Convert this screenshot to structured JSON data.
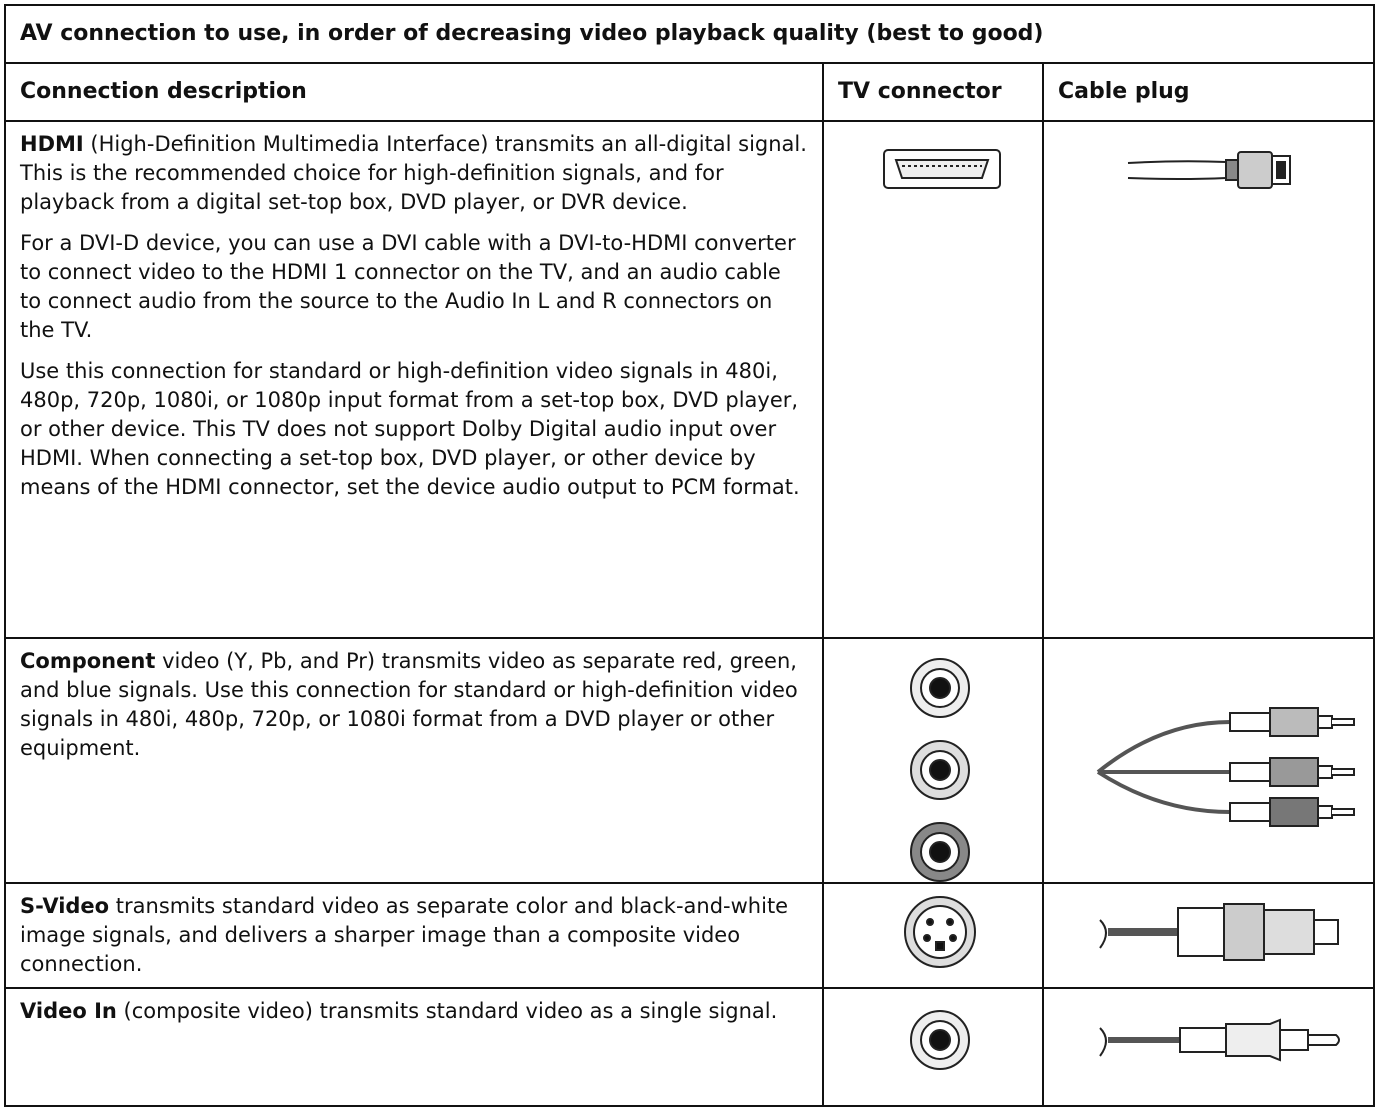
{
  "table": {
    "title": "AV connection to use, in order of decreasing video playback quality (best to good)",
    "columns": [
      "Connection description",
      "TV connector",
      "Cable plug"
    ],
    "rows": [
      {
        "paragraphs": [
          {
            "bold": "HDMI",
            "text": "(High-Definition Multimedia Interface) transmits an all-digital signal. This is the recommended choice for high-definition signals, and for playback from a digital set-top box, DVD player, or DVR device."
          },
          {
            "text": "For a DVI-D device, you can use a DVI cable with a DVI-to-HDMI converter to connect video to the HDMI 1 connector on the TV, and an audio cable to connect audio from the source to the Audio In L and R connectors on the TV."
          },
          {
            "text": "Use this connection for standard or high-definition video signals in 480i, 480p, 720p, 1080i, or 1080p input format from a set-top box, DVD player, or other device. This TV does not support Dolby Digital audio input over HDMI. When connecting a set-top box, DVD player, or other device by means of the HDMI connector, set the device audio output to PCM format."
          }
        ]
      },
      {
        "paragraphs": [
          {
            "bold": "Component",
            "text": "video (Y, Pb, and Pr) transmits video as separate red, green, and blue signals. Use this connection for standard or high-definition video signals in 480i, 480p, 720p, or 1080i format from a DVD player or other equipment."
          }
        ]
      },
      {
        "paragraphs": [
          {
            "bold": "S-Video",
            "text": "transmits standard video as separate color and black-and-white image signals, and delivers a sharper image than a composite video connection."
          }
        ]
      },
      {
        "paragraphs": [
          {
            "bold": "Video In",
            "text": "(composite video) transmits standard video as a single signal."
          }
        ]
      }
    ]
  }
}
